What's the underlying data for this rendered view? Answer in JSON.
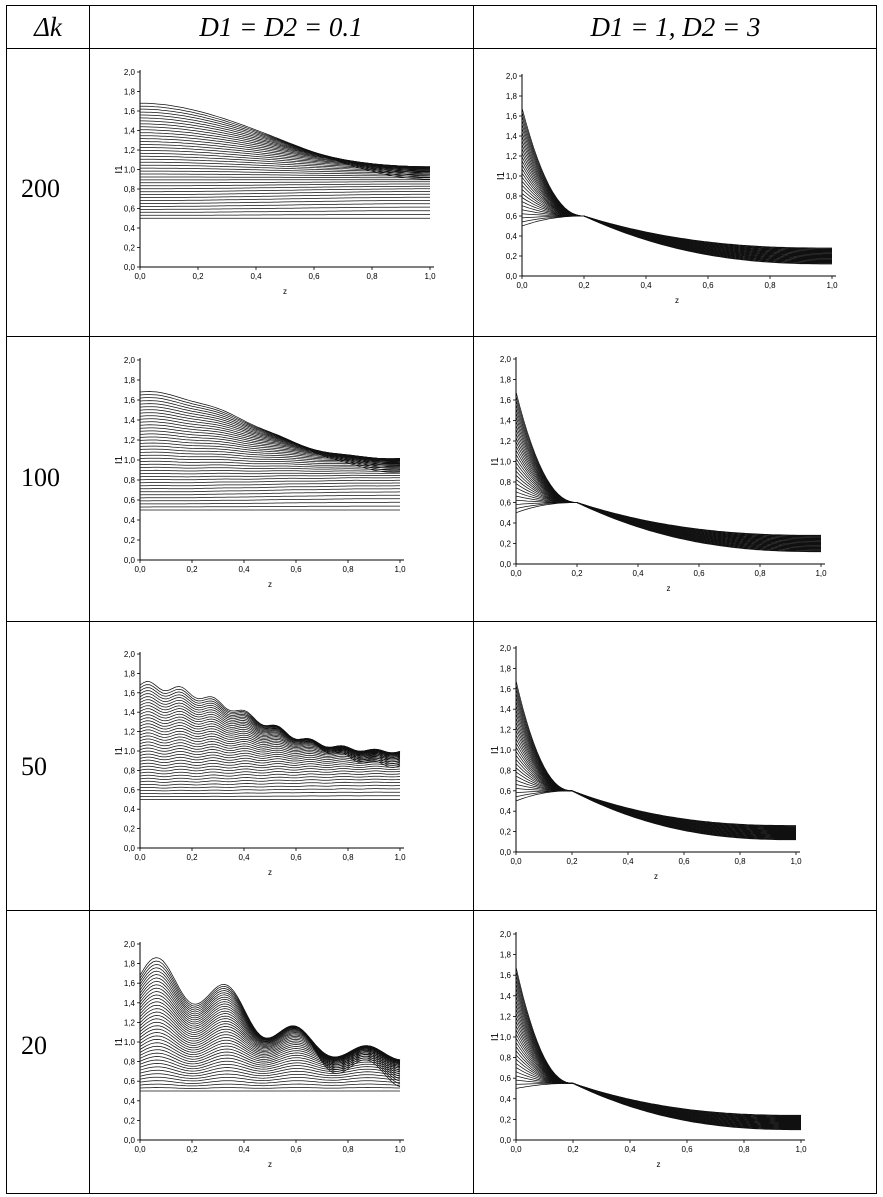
{
  "table": {
    "header": {
      "dk": "Δk",
      "col1": "D1 = D2 = 0.1",
      "col2": "D1 = 1, D2 = 3"
    },
    "rows": [
      "200",
      "100",
      "50",
      "20"
    ]
  },
  "chart_data": [
    {
      "type": "line",
      "panel": "dk200-D0.1",
      "dk": 200,
      "D1": 0.1,
      "D2": 0.1,
      "xlabel": "z",
      "ylabel": "I1",
      "xlim": [
        0,
        1
      ],
      "ylim": [
        0,
        2
      ],
      "xticks": [
        "0,0",
        "0,2",
        "0,4",
        "0,6",
        "0,8",
        "1,0"
      ],
      "yticks": [
        "0,0",
        "0,2",
        "0,4",
        "0,6",
        "0,8",
        "1,0",
        "1,2",
        "1,4",
        "1,6",
        "1,8",
        "2,0"
      ],
      "family": "decay",
      "start_range": [
        0.5,
        1.68
      ],
      "end_value": 0.9,
      "oscillation_amp": 0.0,
      "n_curves": 40
    },
    {
      "type": "line",
      "panel": "dk200-D1-3",
      "dk": 200,
      "D1": 1,
      "D2": 3,
      "xlabel": "z",
      "ylabel": "I1",
      "xlim": [
        0,
        1
      ],
      "ylim": [
        0,
        2
      ],
      "xticks": [
        "0,0",
        "0,2",
        "0,4",
        "0,6",
        "0,8",
        "1,0"
      ],
      "yticks": [
        "0,0",
        "0,2",
        "0,4",
        "0,6",
        "0,8",
        "1,0",
        "1,2",
        "1,4",
        "1,6",
        "1,8",
        "2,0"
      ],
      "family": "fast",
      "start_range": [
        0.5,
        1.68
      ],
      "crossing": [
        0.2,
        0.6
      ],
      "end_range": [
        0.12,
        0.28
      ],
      "n_curves": 30
    },
    {
      "type": "line",
      "panel": "dk100-D0.1",
      "dk": 100,
      "D1": 0.1,
      "D2": 0.1,
      "xlabel": "z",
      "ylabel": "I1",
      "xlim": [
        0,
        1
      ],
      "ylim": [
        0,
        2
      ],
      "xticks": [
        "0,0",
        "0,2",
        "0,4",
        "0,6",
        "0,8",
        "1,0"
      ],
      "yticks": [
        "0,0",
        "0,2",
        "0,4",
        "0,6",
        "0,8",
        "1,0",
        "1,2",
        "1,4",
        "1,6",
        "1,8",
        "2,0"
      ],
      "family": "decay",
      "start_range": [
        0.5,
        1.68
      ],
      "end_value": 0.88,
      "oscillation_amp": 0.01,
      "n_curves": 40
    },
    {
      "type": "line",
      "panel": "dk100-D1-3",
      "dk": 100,
      "D1": 1,
      "D2": 3,
      "xlabel": "z",
      "ylabel": "I1",
      "xlim": [
        0,
        1
      ],
      "ylim": [
        0,
        2
      ],
      "xticks": [
        "0,0",
        "0,2",
        "0,4",
        "0,6",
        "0,8",
        "1,0"
      ],
      "yticks": [
        "0,0",
        "0,2",
        "0,4",
        "0,6",
        "0,8",
        "1,0",
        "1,2",
        "1,4",
        "1,6",
        "1,8",
        "2,0"
      ],
      "family": "fast",
      "start_range": [
        0.5,
        1.68
      ],
      "crossing": [
        0.2,
        0.6
      ],
      "end_range": [
        0.12,
        0.28
      ],
      "n_curves": 30
    },
    {
      "type": "line",
      "panel": "dk50-D0.1",
      "dk": 50,
      "D1": 0.1,
      "D2": 0.1,
      "xlabel": "z",
      "ylabel": "I1",
      "xlim": [
        0,
        1
      ],
      "ylim": [
        0,
        2
      ],
      "xticks": [
        "0,0",
        "0,2",
        "0,4",
        "0,6",
        "0,8",
        "1,0"
      ],
      "yticks": [
        "0,0",
        "0,2",
        "0,4",
        "0,6",
        "0,8",
        "1,0",
        "1,2",
        "1,4",
        "1,6",
        "1,8",
        "2,0"
      ],
      "family": "decay",
      "start_range": [
        0.5,
        1.68
      ],
      "end_value": 0.85,
      "oscillation_amp": 0.04,
      "oscillation_period": 0.125,
      "n_curves": 40
    },
    {
      "type": "line",
      "panel": "dk50-D1-3",
      "dk": 50,
      "D1": 1,
      "D2": 3,
      "xlabel": "z",
      "ylabel": "I1",
      "xlim": [
        0,
        1
      ],
      "ylim": [
        0,
        2
      ],
      "xticks": [
        "0,0",
        "0,2",
        "0,4",
        "0,6",
        "0,8",
        "1,0"
      ],
      "yticks": [
        "0,0",
        "0,2",
        "0,4",
        "0,6",
        "0,8",
        "1,0",
        "1,2",
        "1,4",
        "1,6",
        "1,8",
        "2,0"
      ],
      "family": "fast",
      "start_range": [
        0.5,
        1.68
      ],
      "crossing": [
        0.2,
        0.6
      ],
      "end_range": [
        0.12,
        0.26
      ],
      "n_curves": 30
    },
    {
      "type": "line",
      "panel": "dk20-D0.1",
      "dk": 20,
      "D1": 0.1,
      "D2": 0.1,
      "xlabel": "z",
      "ylabel": "I1",
      "xlim": [
        0,
        1
      ],
      "ylim": [
        0,
        2
      ],
      "xticks": [
        "0,0",
        "0,2",
        "0,4",
        "0,6",
        "0,8",
        "1,0"
      ],
      "yticks": [
        "0,0",
        "0,2",
        "0,4",
        "0,6",
        "0,8",
        "1,0",
        "1,2",
        "1,4",
        "1,6",
        "1,8",
        "2,0"
      ],
      "family": "decay",
      "start_range": [
        0.5,
        1.68
      ],
      "end_value": 0.65,
      "oscillation_amp": 0.2,
      "oscillation_period": 0.27,
      "n_curves": 40
    },
    {
      "type": "line",
      "panel": "dk20-D1-3",
      "dk": 20,
      "D1": 1,
      "D2": 3,
      "xlabel": "z",
      "ylabel": "I1",
      "xlim": [
        0,
        1
      ],
      "ylim": [
        0,
        2
      ],
      "xticks": [
        "0,0",
        "0,2",
        "0,4",
        "0,6",
        "0,8",
        "1,0"
      ],
      "yticks": [
        "0,0",
        "0,2",
        "0,4",
        "0,6",
        "0,8",
        "1,0",
        "1,2",
        "1,4",
        "1,6",
        "1,8",
        "2,0"
      ],
      "family": "fast",
      "start_range": [
        0.5,
        1.68
      ],
      "crossing": [
        0.2,
        0.55
      ],
      "end_range": [
        0.1,
        0.24
      ],
      "n_curves": 30
    }
  ]
}
